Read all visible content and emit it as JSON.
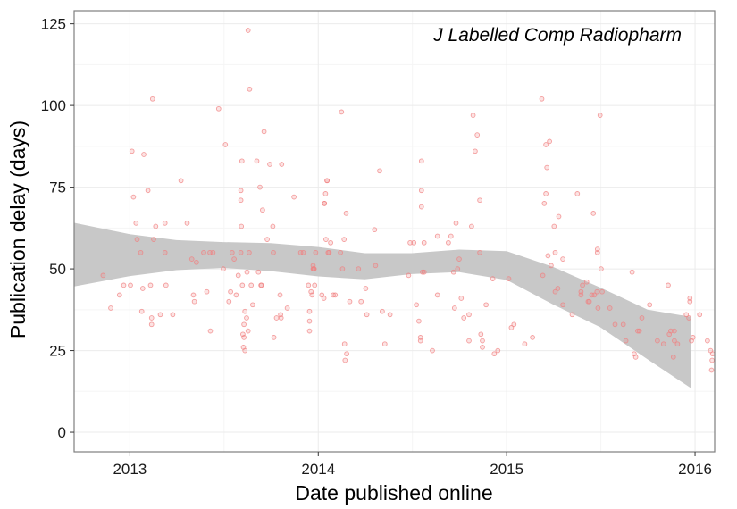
{
  "chart_data": {
    "type": "scatter",
    "title": "",
    "annotation": "J Labelled Comp Radiopharm",
    "xlabel": "Date published online",
    "ylabel": "Publication delay (days)",
    "x_ticks": [
      {
        "value": "2013-01-01",
        "label": "2013"
      },
      {
        "value": "2014-01-01",
        "label": "2014"
      },
      {
        "value": "2015-01-01",
        "label": "2015"
      },
      {
        "value": "2016-01-01",
        "label": "2016"
      }
    ],
    "y_ticks": [
      0,
      25,
      50,
      75,
      100,
      125
    ],
    "xlim": [
      "2012-09-15",
      "2016-02-08"
    ],
    "ylim": [
      -6,
      129
    ],
    "grid": true,
    "colors": {
      "points": "#f08080",
      "band": "#c8c8c8",
      "grid_major": "#ebebeb",
      "grid_minor": "#f5f5f5",
      "border": "#7f7f7f"
    },
    "smooth_band": {
      "x": [
        "2012-09-15",
        "2013-01-01",
        "2013-04-01",
        "2013-07-01",
        "2013-10-01",
        "2014-01-01",
        "2014-04-01",
        "2014-07-01",
        "2014-10-01",
        "2015-01-01",
        "2015-04-01",
        "2015-07-01",
        "2015-10-01",
        "2015-12-25"
      ],
      "lower": [
        44.6,
        47.8,
        49.6,
        50.3,
        49.3,
        47.7,
        46.8,
        48.4,
        49.0,
        46.6,
        39.1,
        32.2,
        22.3,
        13.4
      ],
      "upper": [
        64.1,
        60.6,
        58.8,
        58.2,
        57.9,
        56.7,
        54.8,
        54.8,
        55.9,
        55.4,
        50.6,
        44.3,
        37.5,
        35.3
      ]
    },
    "series": [
      {
        "name": "",
        "points": [
          [
            "2012-11-10",
            48
          ],
          [
            "2012-11-25",
            38
          ],
          [
            "2012-12-12",
            42
          ],
          [
            "2012-12-20",
            45
          ],
          [
            "2013-01-02",
            45
          ],
          [
            "2013-01-05",
            86
          ],
          [
            "2013-01-08",
            72
          ],
          [
            "2013-01-13",
            64
          ],
          [
            "2013-01-15",
            59
          ],
          [
            "2013-01-22",
            55
          ],
          [
            "2013-01-24",
            37
          ],
          [
            "2013-01-26",
            44
          ],
          [
            "2013-01-28",
            85
          ],
          [
            "2013-02-05",
            74
          ],
          [
            "2013-02-10",
            45
          ],
          [
            "2013-02-12",
            33
          ],
          [
            "2013-02-12",
            35
          ],
          [
            "2013-02-14",
            102
          ],
          [
            "2013-02-16",
            59
          ],
          [
            "2013-02-20",
            63
          ],
          [
            "2013-03-01",
            36
          ],
          [
            "2013-03-10",
            64
          ],
          [
            "2013-03-10",
            55
          ],
          [
            "2013-03-12",
            45
          ],
          [
            "2013-03-25",
            36
          ],
          [
            "2013-04-10",
            77
          ],
          [
            "2013-04-22",
            64
          ],
          [
            "2013-05-01",
            53
          ],
          [
            "2013-05-04",
            42
          ],
          [
            "2013-05-06",
            40
          ],
          [
            "2013-05-10",
            52
          ],
          [
            "2013-05-24",
            55
          ],
          [
            "2013-05-30",
            43
          ],
          [
            "2013-06-05",
            55
          ],
          [
            "2013-06-06",
            31
          ],
          [
            "2013-06-11",
            55
          ],
          [
            "2013-06-22",
            99
          ],
          [
            "2013-07-01",
            50
          ],
          [
            "2013-07-05",
            88
          ],
          [
            "2013-07-12",
            40
          ],
          [
            "2013-07-15",
            43
          ],
          [
            "2013-07-18",
            55
          ],
          [
            "2013-07-22",
            53
          ],
          [
            "2013-07-26",
            42
          ],
          [
            "2013-07-30",
            48
          ],
          [
            "2013-08-04",
            55
          ],
          [
            "2013-08-04",
            74
          ],
          [
            "2013-08-04",
            71
          ],
          [
            "2013-08-05",
            63
          ],
          [
            "2013-08-06",
            83
          ],
          [
            "2013-08-07",
            45
          ],
          [
            "2013-08-08",
            30
          ],
          [
            "2013-08-09",
            26
          ],
          [
            "2013-08-10",
            29
          ],
          [
            "2013-08-10",
            33
          ],
          [
            "2013-08-12",
            37
          ],
          [
            "2013-08-12",
            25
          ],
          [
            "2013-08-15",
            35
          ],
          [
            "2013-08-16",
            49
          ],
          [
            "2013-08-18",
            31
          ],
          [
            "2013-08-18",
            123
          ],
          [
            "2013-08-20",
            55
          ],
          [
            "2013-08-21",
            105
          ],
          [
            "2013-08-24",
            45
          ],
          [
            "2013-08-27",
            39
          ],
          [
            "2013-09-04",
            83
          ],
          [
            "2013-09-07",
            49
          ],
          [
            "2013-09-10",
            75
          ],
          [
            "2013-09-12",
            45
          ],
          [
            "2013-09-13",
            45
          ],
          [
            "2013-09-15",
            68
          ],
          [
            "2013-09-18",
            92
          ],
          [
            "2013-09-24",
            59
          ],
          [
            "2013-09-29",
            82
          ],
          [
            "2013-10-05",
            63
          ],
          [
            "2013-10-06",
            55
          ],
          [
            "2013-10-07",
            29
          ],
          [
            "2013-10-12",
            35
          ],
          [
            "2013-10-19",
            42
          ],
          [
            "2013-10-20",
            36
          ],
          [
            "2013-10-21",
            35
          ],
          [
            "2013-10-22",
            82
          ],
          [
            "2013-11-02",
            38
          ],
          [
            "2013-11-15",
            72
          ],
          [
            "2013-11-28",
            55
          ],
          [
            "2013-12-03",
            55
          ],
          [
            "2013-12-13",
            45
          ],
          [
            "2013-12-15",
            37
          ],
          [
            "2013-12-15",
            31
          ],
          [
            "2013-12-15",
            34
          ],
          [
            "2013-12-18",
            43
          ],
          [
            "2013-12-20",
            42
          ],
          [
            "2013-12-22",
            51
          ],
          [
            "2013-12-22",
            50
          ],
          [
            "2013-12-23",
            50
          ],
          [
            "2013-12-24",
            50
          ],
          [
            "2013-12-25",
            45
          ],
          [
            "2013-12-27",
            55
          ],
          [
            "2014-01-08",
            42
          ],
          [
            "2014-01-12",
            41
          ],
          [
            "2014-01-13",
            70
          ],
          [
            "2014-01-13",
            70
          ],
          [
            "2014-01-15",
            73
          ],
          [
            "2014-01-16",
            59
          ],
          [
            "2014-01-18",
            77
          ],
          [
            "2014-01-18",
            77
          ],
          [
            "2014-01-20",
            55
          ],
          [
            "2014-01-22",
            55
          ],
          [
            "2014-01-25",
            58
          ],
          [
            "2014-01-30",
            42
          ],
          [
            "2014-02-03",
            42
          ],
          [
            "2014-02-13",
            55
          ],
          [
            "2014-02-15",
            98
          ],
          [
            "2014-02-17",
            50
          ],
          [
            "2014-02-20",
            59
          ],
          [
            "2014-02-21",
            27
          ],
          [
            "2014-02-22",
            22
          ],
          [
            "2014-02-24",
            67
          ],
          [
            "2014-02-25",
            24
          ],
          [
            "2014-03-03",
            40
          ],
          [
            "2014-03-20",
            50
          ],
          [
            "2014-03-25",
            40
          ],
          [
            "2014-04-03",
            44
          ],
          [
            "2014-04-05",
            36
          ],
          [
            "2014-04-20",
            62
          ],
          [
            "2014-04-22",
            51
          ],
          [
            "2014-04-30",
            80
          ],
          [
            "2014-05-05",
            37
          ],
          [
            "2014-05-10",
            27
          ],
          [
            "2014-05-20",
            36
          ],
          [
            "2014-06-25",
            48
          ],
          [
            "2014-06-28",
            58
          ],
          [
            "2014-07-05",
            58
          ],
          [
            "2014-07-10",
            39
          ],
          [
            "2014-07-15",
            34
          ],
          [
            "2014-07-18",
            28
          ],
          [
            "2014-07-18",
            29
          ],
          [
            "2014-07-20",
            83
          ],
          [
            "2014-07-20",
            74
          ],
          [
            "2014-07-20",
            69
          ],
          [
            "2014-07-22",
            49
          ],
          [
            "2014-07-25",
            58
          ],
          [
            "2014-07-25",
            49
          ],
          [
            "2014-08-10",
            25
          ],
          [
            "2014-08-20",
            60
          ],
          [
            "2014-08-20",
            42
          ],
          [
            "2014-09-10",
            58
          ],
          [
            "2014-09-15",
            60
          ],
          [
            "2014-09-20",
            49
          ],
          [
            "2014-09-22",
            38
          ],
          [
            "2014-09-25",
            64
          ],
          [
            "2014-09-28",
            50
          ],
          [
            "2014-10-01",
            53
          ],
          [
            "2014-10-05",
            41
          ],
          [
            "2014-10-10",
            35
          ],
          [
            "2014-10-20",
            28
          ],
          [
            "2014-10-20",
            36
          ],
          [
            "2014-10-25",
            63
          ],
          [
            "2014-10-28",
            97
          ],
          [
            "2014-11-01",
            86
          ],
          [
            "2014-11-05",
            91
          ],
          [
            "2014-11-10",
            71
          ],
          [
            "2014-11-10",
            55
          ],
          [
            "2014-11-12",
            30
          ],
          [
            "2014-11-15",
            28
          ],
          [
            "2014-11-15",
            26
          ],
          [
            "2014-11-22",
            39
          ],
          [
            "2014-12-05",
            47
          ],
          [
            "2014-12-08",
            24
          ],
          [
            "2014-12-15",
            25
          ],
          [
            "2015-01-05",
            47
          ],
          [
            "2015-01-10",
            32
          ],
          [
            "2015-01-15",
            33
          ],
          [
            "2015-02-05",
            27
          ],
          [
            "2015-02-20",
            29
          ],
          [
            "2015-03-10",
            102
          ],
          [
            "2015-03-12",
            48
          ],
          [
            "2015-03-15",
            70
          ],
          [
            "2015-03-18",
            73
          ],
          [
            "2015-03-18",
            88
          ],
          [
            "2015-03-20",
            81
          ],
          [
            "2015-03-22",
            54
          ],
          [
            "2015-03-25",
            89
          ],
          [
            "2015-03-28",
            51
          ],
          [
            "2015-04-03",
            63
          ],
          [
            "2015-04-05",
            43
          ],
          [
            "2015-04-05",
            55
          ],
          [
            "2015-04-10",
            44
          ],
          [
            "2015-04-12",
            66
          ],
          [
            "2015-04-20",
            53
          ],
          [
            "2015-04-20",
            39
          ],
          [
            "2015-05-08",
            36
          ],
          [
            "2015-05-18",
            73
          ],
          [
            "2015-05-25",
            43
          ],
          [
            "2015-05-25",
            42
          ],
          [
            "2015-05-28",
            45
          ],
          [
            "2015-06-05",
            46
          ],
          [
            "2015-06-08",
            40
          ],
          [
            "2015-06-10",
            40
          ],
          [
            "2015-06-15",
            42
          ],
          [
            "2015-06-18",
            67
          ],
          [
            "2015-06-20",
            42
          ],
          [
            "2015-06-25",
            43
          ],
          [
            "2015-06-26",
            56
          ],
          [
            "2015-06-26",
            55
          ],
          [
            "2015-06-27",
            38
          ],
          [
            "2015-07-01",
            97
          ],
          [
            "2015-07-03",
            50
          ],
          [
            "2015-07-05",
            43
          ],
          [
            "2015-07-20",
            38
          ],
          [
            "2015-07-30",
            33
          ],
          [
            "2015-08-15",
            33
          ],
          [
            "2015-08-20",
            28
          ],
          [
            "2015-09-01",
            49
          ],
          [
            "2015-09-05",
            24
          ],
          [
            "2015-09-08",
            23
          ],
          [
            "2015-09-12",
            31
          ],
          [
            "2015-09-15",
            31
          ],
          [
            "2015-09-20",
            35
          ],
          [
            "2015-10-05",
            39
          ],
          [
            "2015-10-20",
            28
          ],
          [
            "2015-11-01",
            27
          ],
          [
            "2015-11-10",
            45
          ],
          [
            "2015-11-12",
            30
          ],
          [
            "2015-11-15",
            31
          ],
          [
            "2015-11-20",
            23
          ],
          [
            "2015-11-22",
            28
          ],
          [
            "2015-11-22",
            31
          ],
          [
            "2015-11-28",
            27
          ],
          [
            "2015-12-15",
            36
          ],
          [
            "2015-12-20",
            35
          ],
          [
            "2015-12-22",
            40
          ],
          [
            "2015-12-22",
            41
          ],
          [
            "2015-12-25",
            28
          ],
          [
            "2015-12-28",
            29
          ],
          [
            "2016-01-10",
            36
          ],
          [
            "2016-01-25",
            28
          ],
          [
            "2016-01-31",
            25
          ],
          [
            "2016-02-02",
            19
          ],
          [
            "2016-02-03",
            22
          ],
          [
            "2016-02-04",
            24
          ]
        ]
      }
    ]
  }
}
